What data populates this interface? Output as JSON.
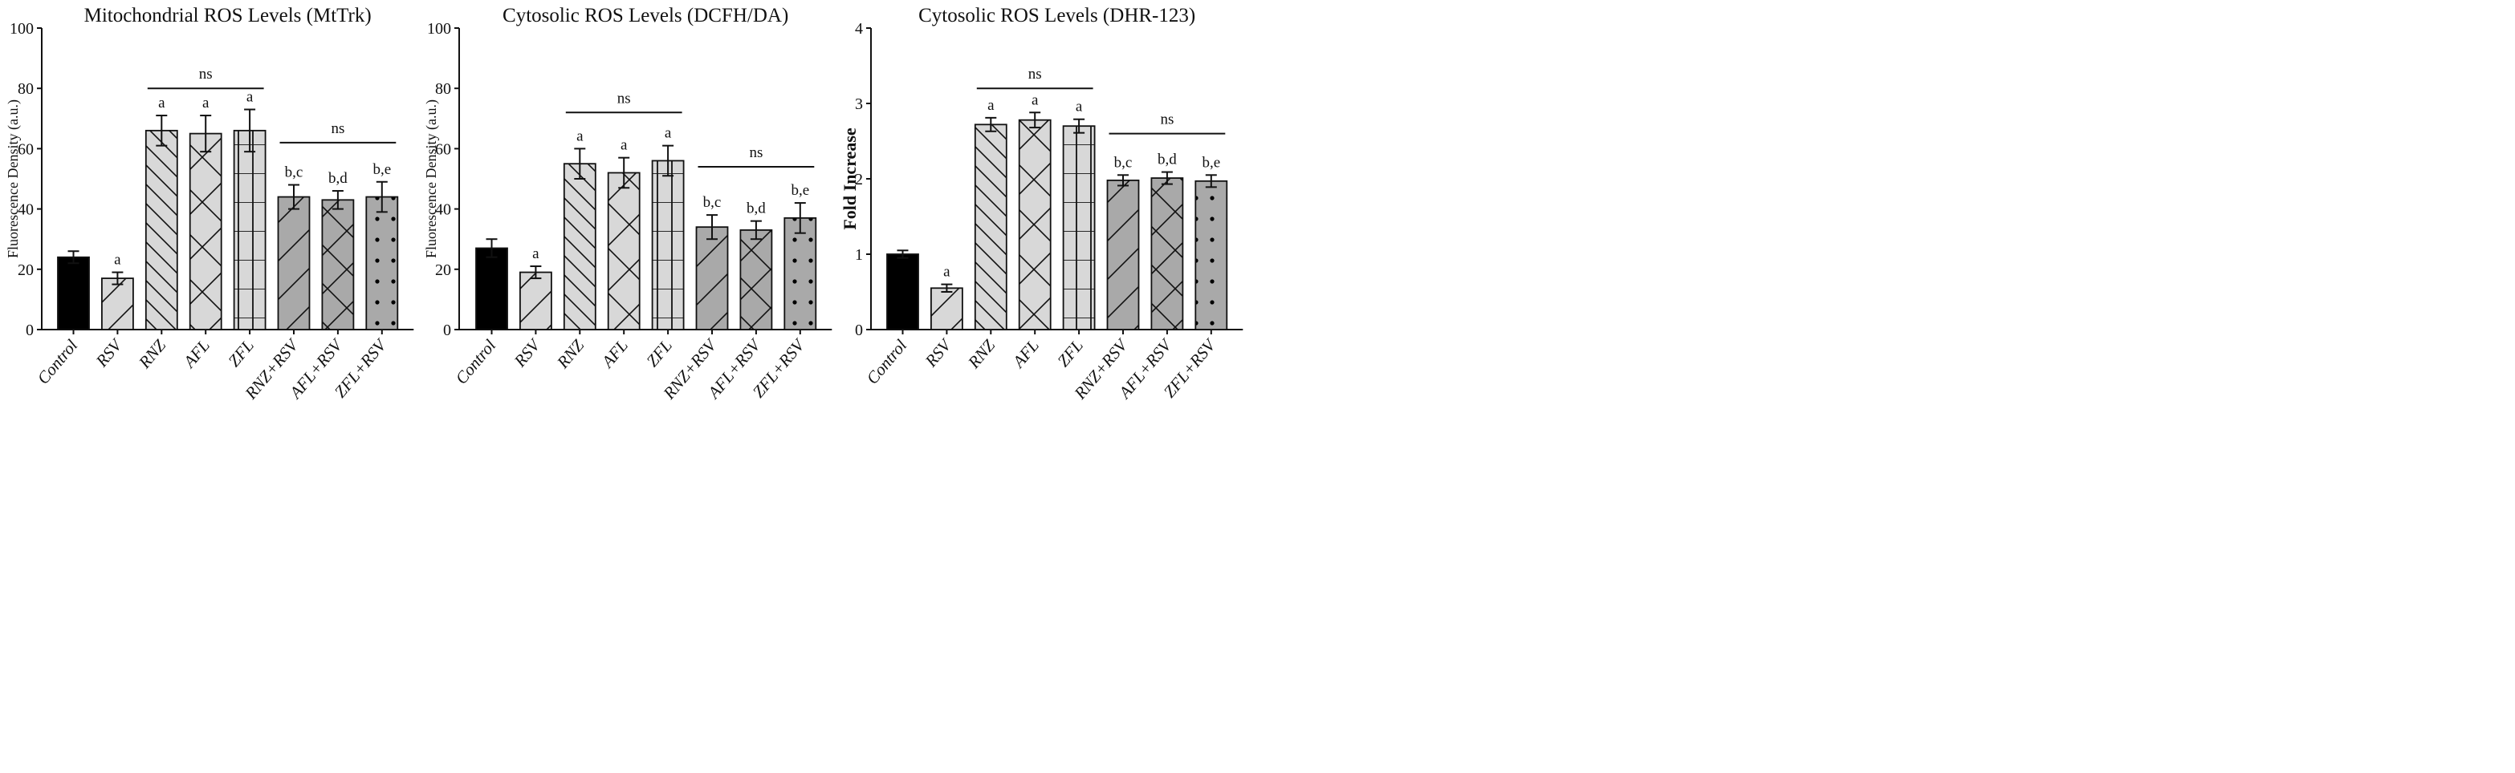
{
  "colors": {
    "control": "#000000",
    "light_fill": "#d8d8d8",
    "dark_fill": "#a9a9a9",
    "ink": "#111111"
  },
  "bar_patterns": [
    "solid-black",
    "diagonal-forward",
    "diagonal-back",
    "crosshatch-diagonal",
    "grid",
    "diagonal-forward",
    "crosshatch-diagonal",
    "dots"
  ],
  "chart_data": [
    {
      "type": "bar",
      "title": "Mitochondrial ROS Levels (MtTrk)",
      "ylabel": "Fluorescence Density (a.u.)",
      "xlabel": "",
      "ylim": [
        0,
        100
      ],
      "yticks": [
        0,
        20,
        40,
        60,
        80,
        100
      ],
      "categories": [
        "Control",
        "RSV",
        "RNZ",
        "AFL",
        "ZFL",
        "RNZ+RSV",
        "AFL+RSV",
        "ZFL+RSV"
      ],
      "values": [
        24,
        17,
        66,
        65,
        66,
        44,
        43,
        44
      ],
      "errors": [
        2,
        2,
        5,
        6,
        7,
        4,
        3,
        5
      ],
      "annotations": [
        "",
        "a",
        "a",
        "a",
        "a",
        "b,c",
        "b,d",
        "b,e"
      ],
      "brackets": [
        {
          "from": 2,
          "to": 4,
          "y": 80,
          "label": "ns"
        },
        {
          "from": 5,
          "to": 7,
          "y": 62,
          "label": "ns"
        }
      ]
    },
    {
      "type": "bar",
      "title": "Cytosolic ROS Levels (DCFH/DA)",
      "ylabel": "Fluorescence Density (a.u.)",
      "xlabel": "",
      "ylim": [
        0,
        100
      ],
      "yticks": [
        0,
        20,
        40,
        60,
        80,
        100
      ],
      "categories": [
        "Control",
        "RSV",
        "RNZ",
        "AFL",
        "ZFL",
        "RNZ+RSV",
        "AFL+RSV",
        "ZFL+RSV"
      ],
      "values": [
        27,
        19,
        55,
        52,
        56,
        34,
        33,
        37
      ],
      "errors": [
        3,
        2,
        5,
        5,
        5,
        4,
        3,
        5
      ],
      "annotations": [
        "",
        "a",
        "a",
        "a",
        "a",
        "b,c",
        "b,d",
        "b,e"
      ],
      "brackets": [
        {
          "from": 2,
          "to": 4,
          "y": 72,
          "label": "ns"
        },
        {
          "from": 5,
          "to": 7,
          "y": 54,
          "label": "ns"
        }
      ]
    },
    {
      "type": "bar",
      "title": "Cytosolic ROS Levels (DHR-123)",
      "ylabel": "Fold Increase",
      "xlabel": "",
      "ylim": [
        0,
        4
      ],
      "yticks": [
        0,
        1,
        2,
        3,
        4
      ],
      "categories": [
        "Control",
        "RSV",
        "RNZ",
        "AFL",
        "ZFL",
        "RNZ+RSV",
        "AFL+RSV",
        "ZFL+RSV"
      ],
      "values": [
        1.0,
        0.55,
        2.72,
        2.78,
        2.7,
        1.98,
        2.01,
        1.97
      ],
      "errors": [
        0.05,
        0.05,
        0.09,
        0.1,
        0.09,
        0.07,
        0.08,
        0.08
      ],
      "annotations": [
        "",
        "a",
        "a",
        "a",
        "a",
        "b,c",
        "b,d",
        "b,e"
      ],
      "brackets": [
        {
          "from": 2,
          "to": 4,
          "y": 3.2,
          "label": "ns"
        },
        {
          "from": 5,
          "to": 7,
          "y": 2.6,
          "label": "ns"
        }
      ]
    }
  ]
}
